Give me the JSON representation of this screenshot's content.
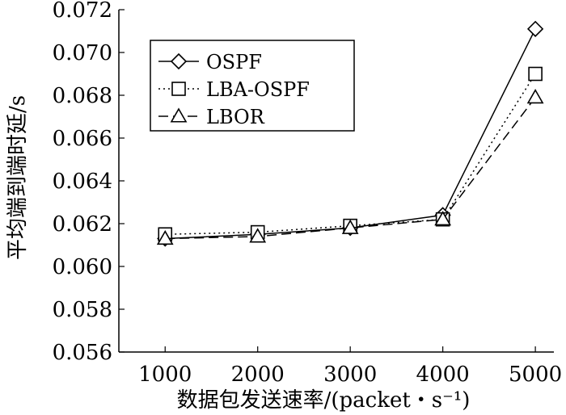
{
  "chart_data": {
    "type": "line",
    "title": "",
    "xlabel": "数据包发送速率/(packet・s⁻¹)",
    "ylabel": "平均端到端时延/s",
    "x": [
      1000,
      2000,
      3000,
      4000,
      5000
    ],
    "xticks": [
      "1000",
      "2000",
      "3000",
      "4000",
      "5000"
    ],
    "ylim": [
      0.056,
      0.072
    ],
    "yticks": [
      "0.056",
      "0.058",
      "0.060",
      "0.062",
      "0.064",
      "0.066",
      "0.068",
      "0.070",
      "0.072"
    ],
    "legend_position": "top-left",
    "grid": false,
    "series": [
      {
        "name": "OSPF",
        "marker": "diamond",
        "line": "solid",
        "values": [
          0.0613,
          0.0615,
          0.0618,
          0.0624,
          0.0711
        ]
      },
      {
        "name": "LBA-OSPF",
        "marker": "square",
        "line": "dotted",
        "values": [
          0.0615,
          0.0616,
          0.0619,
          0.0622,
          0.069
        ]
      },
      {
        "name": "LBOR",
        "marker": "triangle",
        "line": "dashed",
        "values": [
          0.0613,
          0.0614,
          0.0618,
          0.0622,
          0.0679
        ]
      }
    ]
  }
}
